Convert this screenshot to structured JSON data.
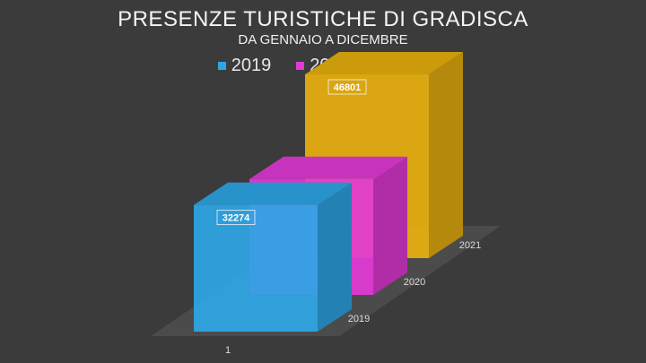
{
  "title": "PRESENZE TURISTICHE DI GRADISCA",
  "subtitle": "DA GENNAIO A DICEMBRE",
  "chart_data": {
    "type": "bar",
    "title": "PRESENZE TURISTICHE DI GRADISCA",
    "subtitle": "DA GENNAIO A DICEMBRE",
    "categories": [
      "1"
    ],
    "series": [
      {
        "name": "2019",
        "values": [
          32274
        ],
        "color": "#2ea6e6"
      },
      {
        "name": "2020",
        "values": [
          29507
        ],
        "color": "#e23ad6"
      },
      {
        "name": "2021",
        "values": [
          46801
        ],
        "color": "#e8b00e"
      }
    ],
    "depth_labels": [
      "2019",
      "2020",
      "2021"
    ],
    "legend_position": "top",
    "grid": false,
    "style": "3d"
  }
}
